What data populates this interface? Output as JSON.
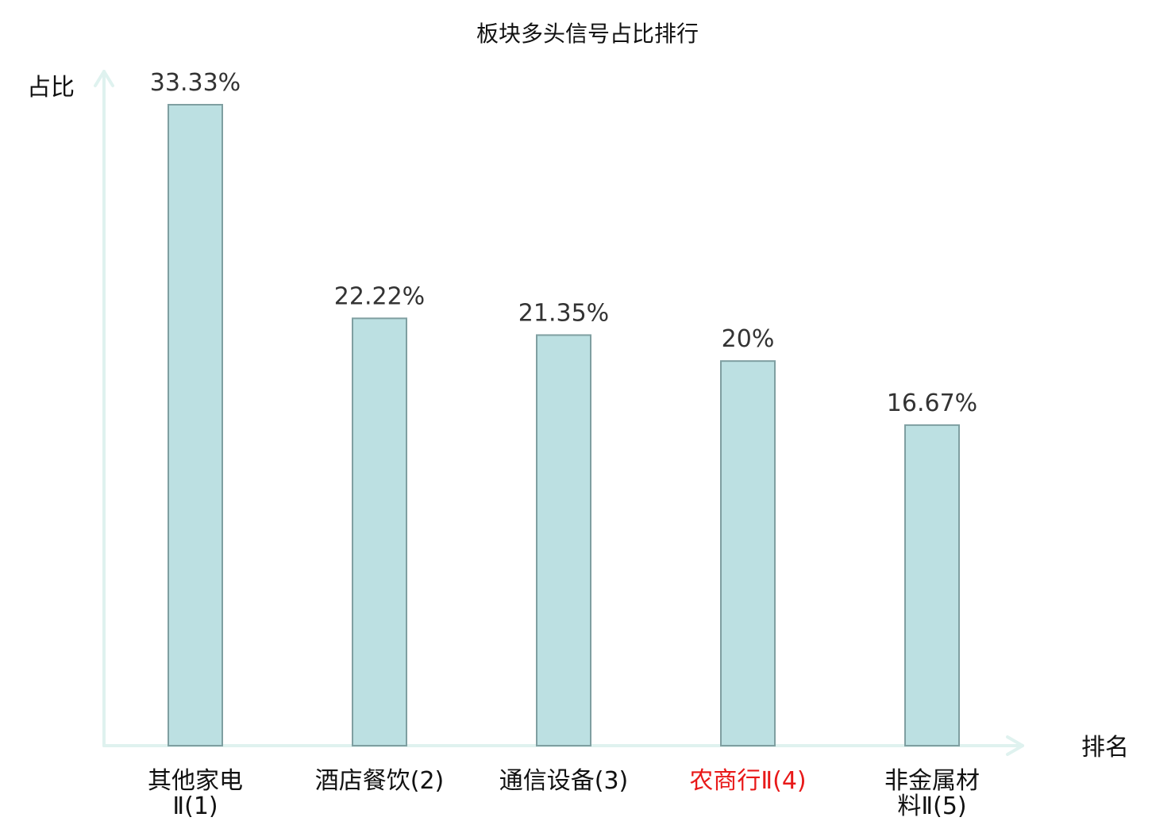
{
  "chart_data": {
    "type": "bar",
    "title": "板块多头信号占比排行",
    "ylabel": "占比",
    "xlabel": "排名",
    "categories": [
      "其他家电Ⅱ(1)",
      "酒店餐饮(2)",
      "通信设备(3)",
      "农商行Ⅱ(4)",
      "非金属材料Ⅱ(5)"
    ],
    "category_lines": [
      [
        "其他家电",
        "Ⅱ(1)"
      ],
      [
        "酒店餐饮(2)"
      ],
      [
        "通信设备(3)"
      ],
      [
        "农商行Ⅱ(4)"
      ],
      [
        "非金属材",
        "料Ⅱ(5)"
      ]
    ],
    "values": [
      33.33,
      22.22,
      21.35,
      20,
      16.67
    ],
    "value_labels": [
      "33.33%",
      "22.22%",
      "21.35%",
      "20%",
      "16.67%"
    ],
    "highlighted_category_index": 3,
    "ylim": [
      0,
      33.33
    ],
    "grid": false,
    "legend": "none",
    "colors": {
      "bar_fill": "#bce0e2",
      "bar_stroke": "#7f9fa1",
      "axis": "#dff2ef",
      "highlight_text": "#e81919",
      "text": "#111111",
      "value_text": "#333333"
    }
  }
}
